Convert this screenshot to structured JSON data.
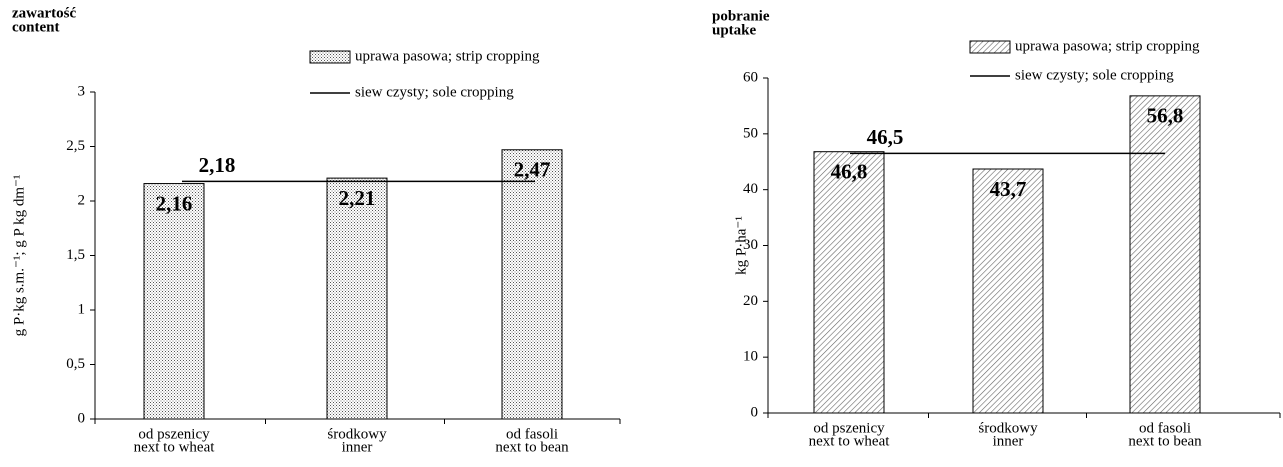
{
  "chart_data": [
    {
      "type": "bar",
      "title": "zawartość",
      "subtitle": "content",
      "y_label": "g P·kg s.m.⁻¹; g P kg dm⁻¹",
      "categories": [
        [
          "od pszenicy",
          "next to wheat"
        ],
        [
          "środkowy",
          "inner"
        ],
        [
          "od fasoli",
          "next to bean"
        ]
      ],
      "series": [
        {
          "name": "uprawa pasowa; strip cropping",
          "pattern": "dots",
          "color": "#000000",
          "values": [
            2.16,
            2.21,
            2.47
          ],
          "value_labels": [
            "2,16",
            "2,21",
            "2,47"
          ]
        }
      ],
      "reference_line": {
        "name": "siew czysty; sole cropping",
        "color": "#000000",
        "value": 2.18,
        "value_label": "2,18"
      },
      "ylim": [
        0,
        3
      ],
      "yticks": [
        0,
        {
          "value": 0.5,
          "label": "0,5"
        },
        1,
        {
          "value": 1.5,
          "label": "1,5"
        },
        2,
        {
          "value": 2.5,
          "label": "2,5"
        },
        3
      ]
    },
    {
      "type": "bar",
      "title": "pobranie",
      "subtitle": "uptake",
      "y_label": "kg P·ha⁻¹",
      "categories": [
        [
          "od pszenicy",
          "next to wheat"
        ],
        [
          "środkowy",
          "inner"
        ],
        [
          "od fasoli",
          "next to bean"
        ]
      ],
      "series": [
        {
          "name": "uprawa pasowa; strip cropping",
          "pattern": "hatch",
          "color": "#000000",
          "values": [
            46.8,
            43.7,
            56.8
          ],
          "value_labels": [
            "46,8",
            "43,7",
            "56,8"
          ]
        }
      ],
      "reference_line": {
        "name": "siew czysty; sole cropping",
        "color": "#000000",
        "value": 46.5,
        "value_label": "46,5"
      },
      "ylim": [
        0,
        60
      ],
      "yticks": [
        0,
        10,
        20,
        30,
        40,
        50,
        60
      ]
    }
  ]
}
